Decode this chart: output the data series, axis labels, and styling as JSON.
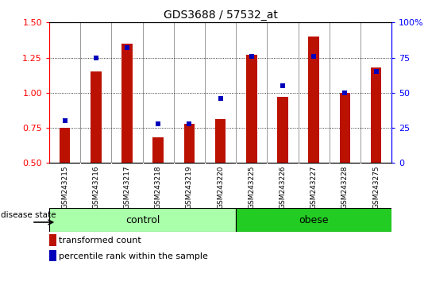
{
  "title": "GDS3688 / 57532_at",
  "samples": [
    "GSM243215",
    "GSM243216",
    "GSM243217",
    "GSM243218",
    "GSM243219",
    "GSM243220",
    "GSM243225",
    "GSM243226",
    "GSM243227",
    "GSM243228",
    "GSM243275"
  ],
  "transformed_count": [
    0.75,
    1.15,
    1.35,
    0.68,
    0.78,
    0.81,
    1.27,
    0.97,
    1.4,
    1.0,
    1.18
  ],
  "percentile_rank": [
    30,
    75,
    82,
    28,
    28,
    46,
    76,
    55,
    76,
    50,
    65
  ],
  "control_indices": [
    0,
    1,
    2,
    3,
    4,
    5
  ],
  "obese_indices": [
    6,
    7,
    8,
    9,
    10
  ],
  "control_label": "control",
  "obese_label": "obese",
  "control_color": "#AAFFAA",
  "obese_color": "#22CC22",
  "ylim_left": [
    0.5,
    1.5
  ],
  "ylim_right": [
    0,
    100
  ],
  "yticks_left": [
    0.5,
    0.75,
    1.0,
    1.25,
    1.5
  ],
  "yticks_right": [
    0,
    25,
    50,
    75,
    100
  ],
  "ytick_labels_right": [
    "0",
    "25",
    "50",
    "75",
    "100%"
  ],
  "bar_color": "#BB1100",
  "dot_color": "#0000BB",
  "bar_width": 0.35,
  "label_bar": "transformed count",
  "label_dot": "percentile rank within the sample",
  "xlabel_bg": "#CCCCCC",
  "plot_bg": "#FFFFFF",
  "separator_color": "#999999",
  "grid_yticks": [
    0.75,
    1.0,
    1.25
  ]
}
